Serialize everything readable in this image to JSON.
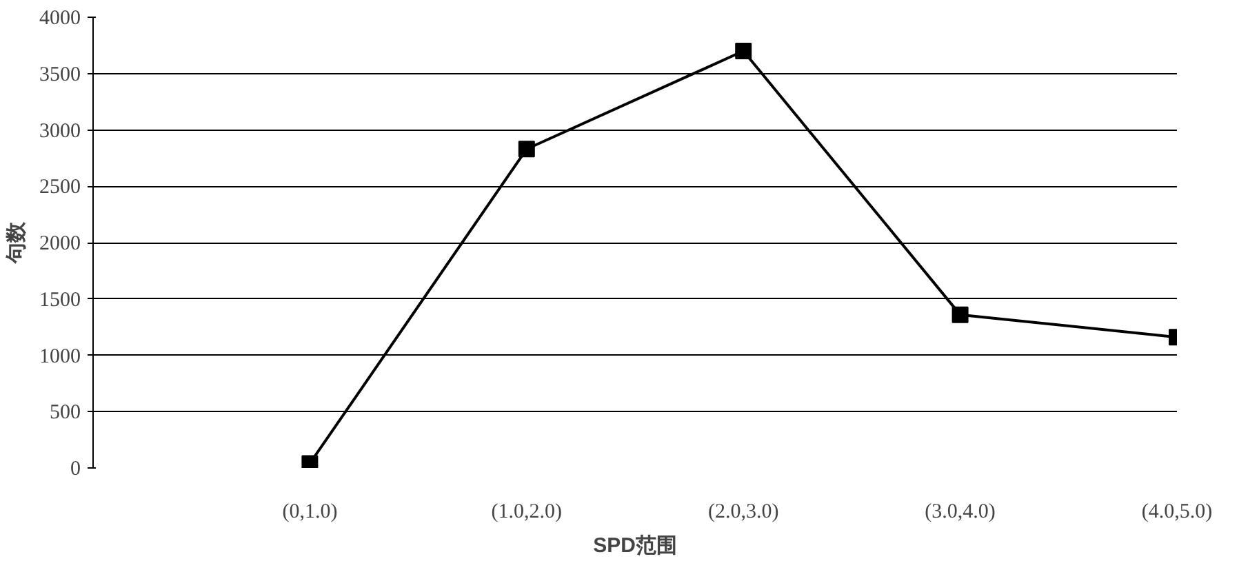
{
  "chart_data": {
    "type": "line",
    "xlabel": "SPD范围",
    "ylabel": "句数",
    "categories": [
      null,
      "(0,1.0)",
      "(1.0,2.0)",
      "(2.0,3.0)",
      "(3.0,4.0)",
      "(4.0,5.0)"
    ],
    "series": [
      {
        "color": "#000000",
        "values": [
          null,
          40,
          2830,
          3700,
          1360,
          1160
        ]
      }
    ],
    "ylim": [
      0,
      4000
    ],
    "yticks": [
      0,
      500,
      1000,
      1500,
      2000,
      2500,
      3000,
      3500,
      4000
    ],
    "grid": "y",
    "marker": "square",
    "line_style": "solid"
  }
}
